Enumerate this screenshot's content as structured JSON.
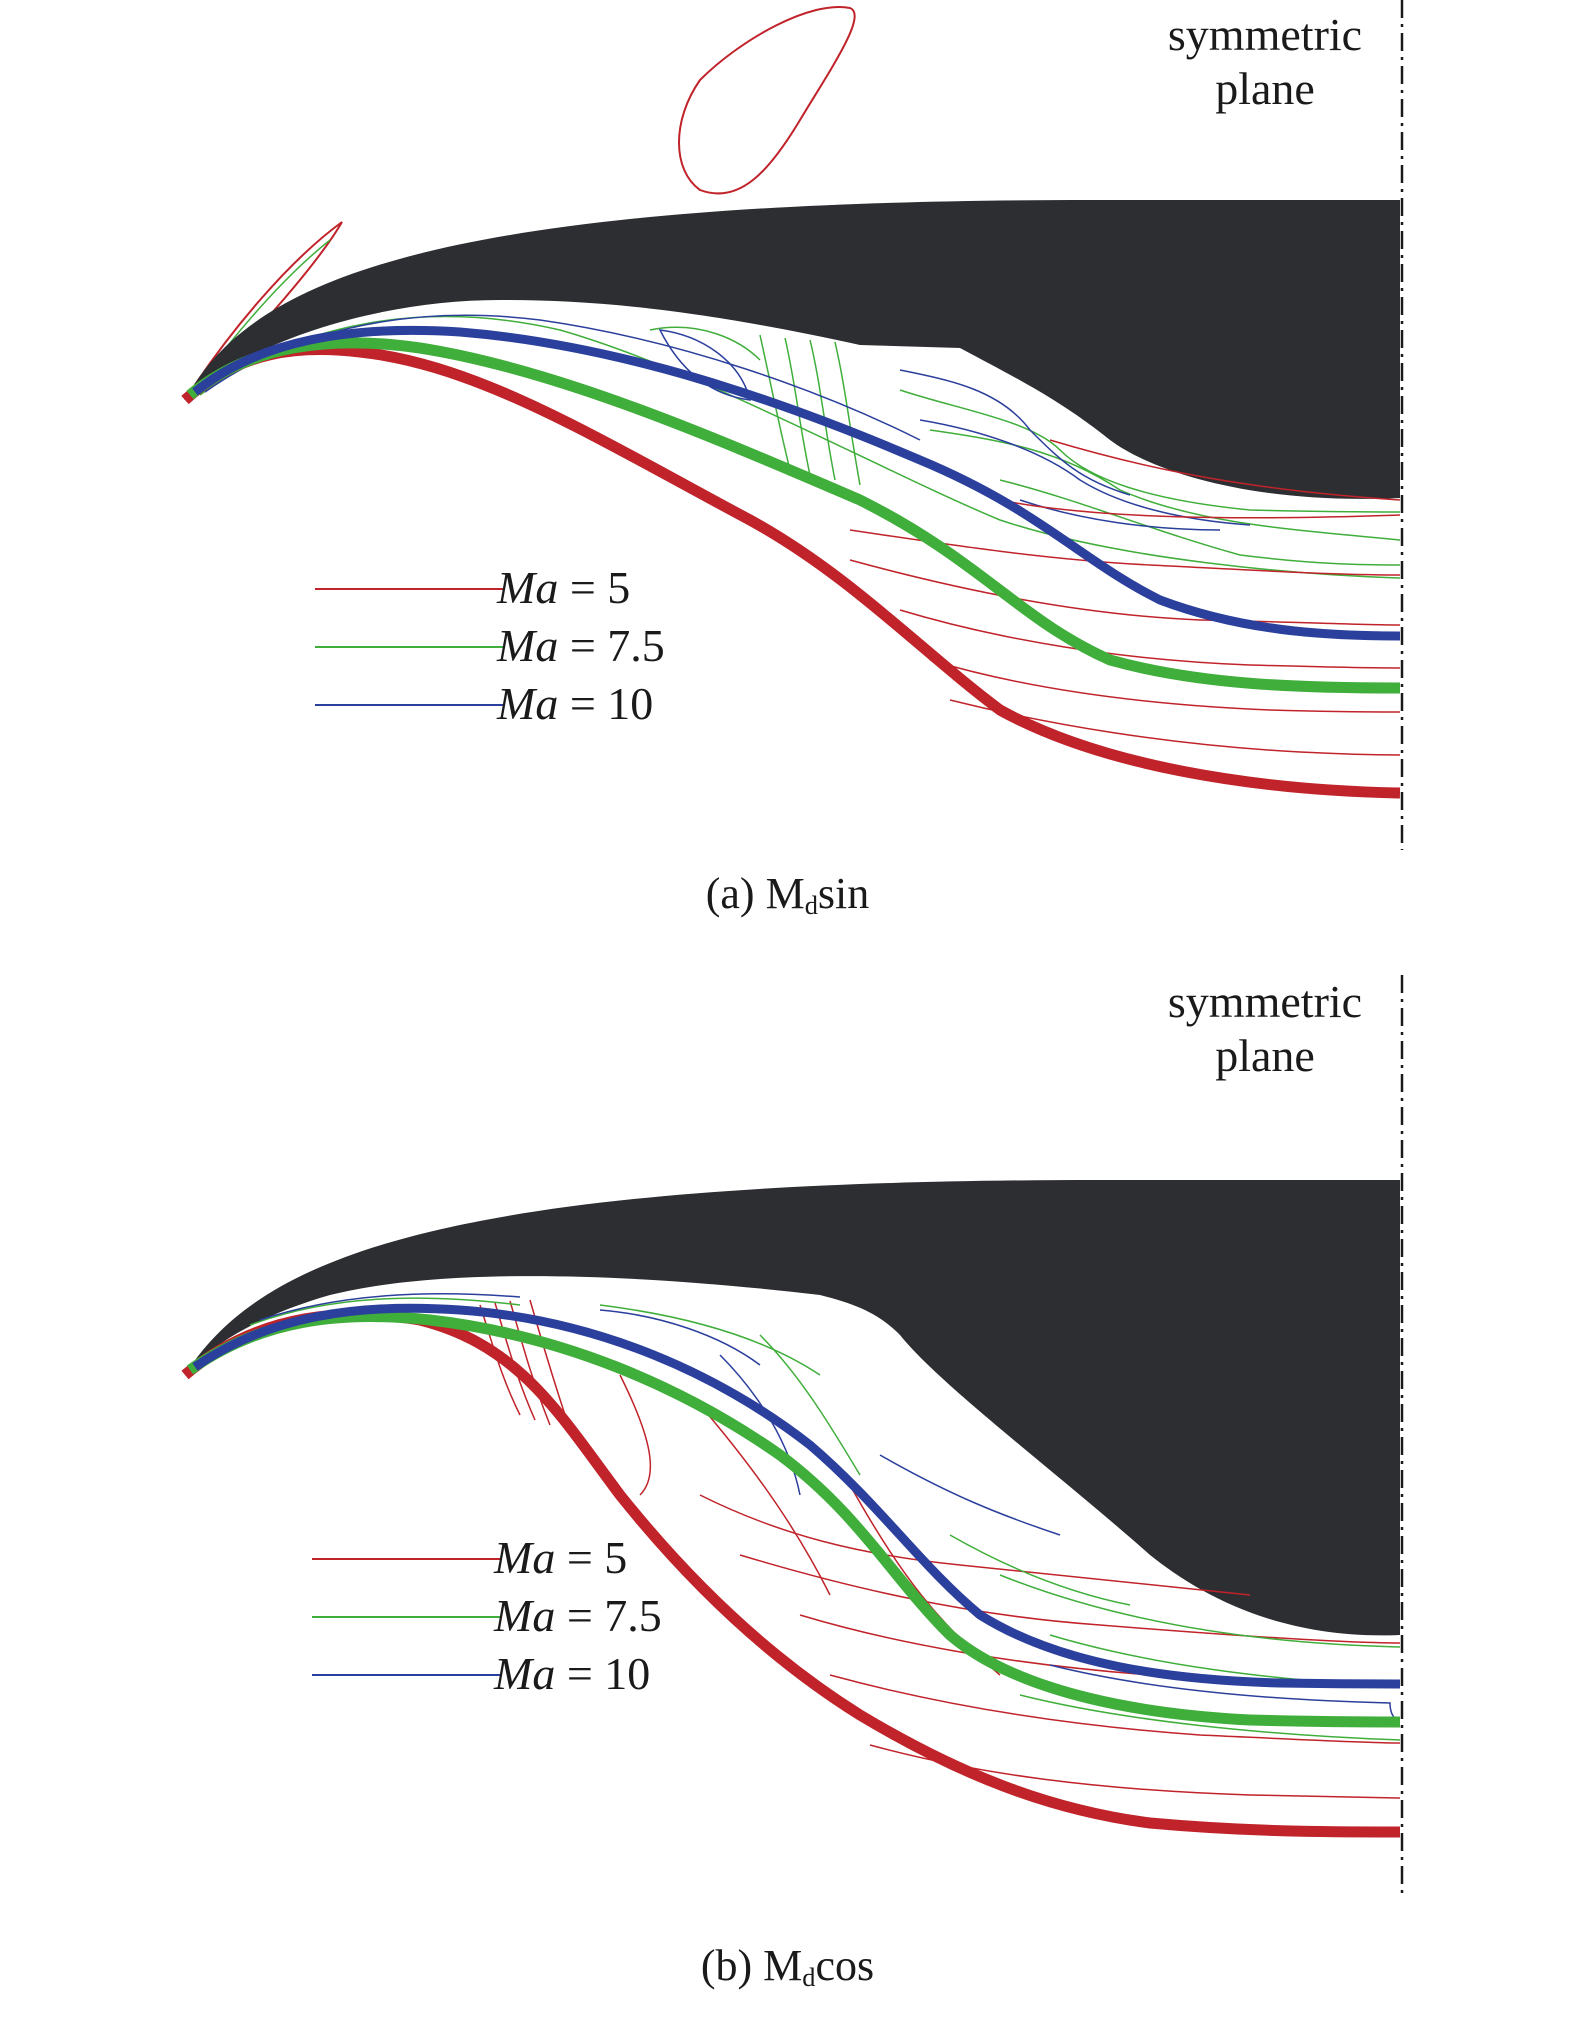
{
  "figure": {
    "symmetric_plane_label": [
      "symmetric",
      "plane"
    ],
    "colors": {
      "body": "#2d2e32",
      "ma5": "#c0232a",
      "ma75": "#3fae3a",
      "ma10": "#2b3f9c"
    }
  },
  "panels": [
    {
      "caption": {
        "prefix": "(a) M",
        "sub": "d",
        "suffix": "sin"
      },
      "legend": [
        {
          "var": "Ma",
          "value": "= 5",
          "color": "#c0232a"
        },
        {
          "var": "Ma",
          "value": "= 7.5",
          "color": "#3fae3a"
        },
        {
          "var": "Ma",
          "value": "= 10",
          "color": "#2b3f9c"
        }
      ]
    },
    {
      "caption": {
        "prefix": "(b) M",
        "sub": "d",
        "suffix": "cos"
      },
      "legend": [
        {
          "var": "Ma",
          "value": "= 5",
          "color": "#c0232a"
        },
        {
          "var": "Ma",
          "value": "= 7.5",
          "color": "#3fae3a"
        },
        {
          "var": "Ma",
          "value": "= 10",
          "color": "#2b3f9c"
        }
      ]
    }
  ]
}
